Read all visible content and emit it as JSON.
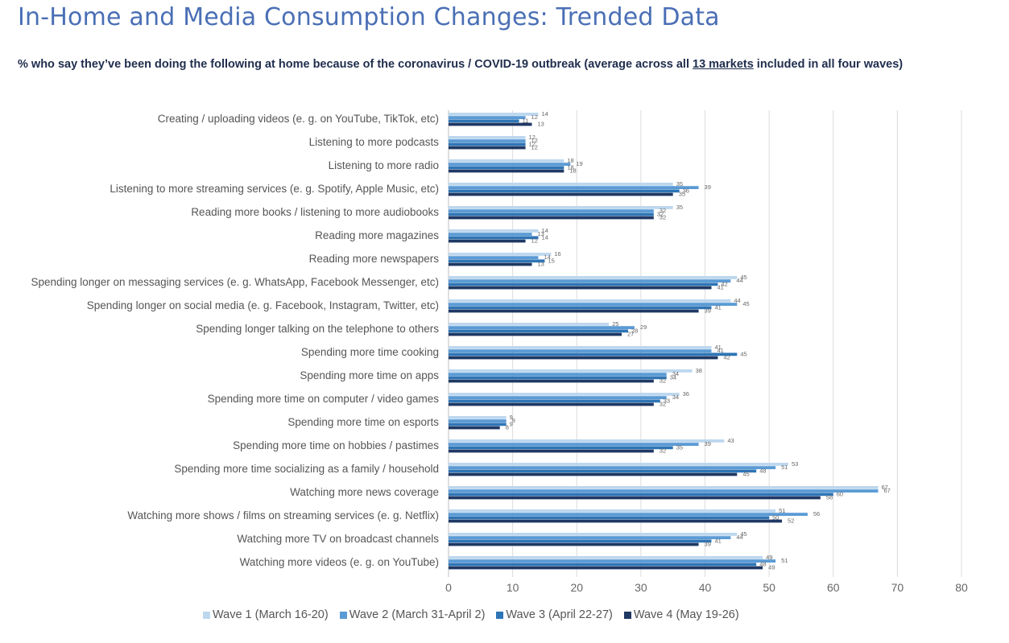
{
  "page": {
    "title": "In-Home and Media Consumption Changes: Trended Data",
    "subtitle_pre": "% who say they’ve been doing the following at home because of the coronavirus / COVID-19 outbreak (average across all ",
    "subtitle_link": "13 markets",
    "subtitle_post": " included in all four waves)"
  },
  "chart_data": {
    "type": "bar",
    "orientation": "horizontal",
    "xlim": [
      0,
      80
    ],
    "x_ticks": [
      0,
      10,
      20,
      30,
      40,
      50,
      60,
      70,
      80
    ],
    "grid": "vertical",
    "legend_position": "bottom",
    "categories": [
      "Creating / uploading videos (e. g. on YouTube, TikTok, etc)",
      "Listening to more podcasts",
      "Listening to more radio",
      "Listening to more streaming services (e. g. Spotify, Apple Music, etc)",
      "Reading more books / listening to more audiobooks",
      "Reading more magazines",
      "Reading more newspapers",
      "Spending longer on messaging services (e. g. WhatsApp, Facebook Messenger, etc)",
      "Spending longer on social media (e. g. Facebook, Instagram, Twitter, etc)",
      "Spending longer talking on the telephone to others",
      "Spending more time cooking",
      "Spending more time on apps",
      "Spending more time on computer / video games",
      "Spending more time on esports",
      "Spending more time on hobbies / pastimes",
      "Spending more time socializing as a family / household",
      "Watching more news coverage",
      "Watching more shows / films on streaming services (e. g. Netflix)",
      "Watching more TV on broadcast channels",
      "Watching more videos (e. g. on YouTube)"
    ],
    "series": [
      {
        "name": "Wave 1 (March 16-20)",
        "color": "#bdd7ee",
        "values": [
          14,
          12,
          18,
          35,
          35,
          14,
          16,
          45,
          44,
          25,
          41,
          38,
          36,
          9,
          43,
          53,
          67,
          51,
          45,
          49
        ]
      },
      {
        "name": "Wave 2 (March 31-April 2)",
        "color": "#5b9bd5",
        "values": [
          12,
          12,
          19,
          39,
          32,
          13,
          14,
          44,
          45,
          29,
          41,
          34,
          34,
          9,
          39,
          51,
          67,
          56,
          44,
          51
        ]
      },
      {
        "name": "Wave 3 (April 22-27)",
        "color": "#2e75b6",
        "values": [
          11,
          12,
          18,
          36,
          32,
          14,
          15,
          42,
          41,
          28,
          45,
          34,
          33,
          9,
          35,
          48,
          60,
          50,
          41,
          48
        ]
      },
      {
        "name": "Wave 4 (May 19-26)",
        "color": "#1f3864",
        "values": [
          13,
          12,
          18,
          35,
          32,
          12,
          13,
          41,
          39,
          27,
          42,
          32,
          32,
          8,
          32,
          45,
          58,
          52,
          39,
          49
        ]
      }
    ]
  }
}
